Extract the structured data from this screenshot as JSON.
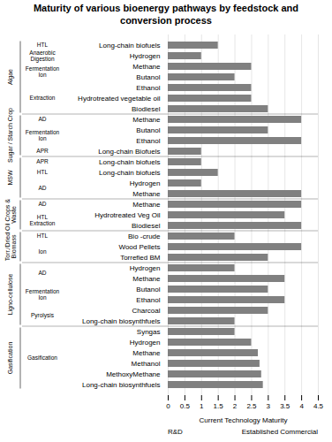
{
  "chart_data": {
    "type": "bar",
    "orientation": "horizontal",
    "title": "Maturity of various bioenergy pathways by feedstock and\nconversion process",
    "xlabel": "Current Technology Maturity",
    "xlim": [
      0,
      4.5
    ],
    "xticks": [
      0,
      0.5,
      1,
      1.5,
      2,
      2.5,
      3,
      3.5,
      4,
      4.5
    ],
    "grid": true,
    "color": "#808080",
    "x_end_labels": [
      "R&D",
      "Established Commercial"
    ],
    "categories": [
      "Long-chain biofuels",
      "Hydrogen",
      "Methane",
      "Butanol",
      "Ethanol",
      "Hydrotreated vegetable oil",
      "Biodiesel",
      "Methane",
      "Butanol",
      "Ethanol",
      "Long-chain Biofuels",
      "Long-chain biofuels",
      "Long-chain biofuels",
      "Hydrogen",
      "Methane",
      "Methane",
      "Hydrotreated Veg Oil",
      "Biodiesel",
      "Bio -crude",
      "Wood Pellets",
      "Torrefied BM",
      "Hydrogen",
      "Methane",
      "Butanol",
      "Ethanol",
      "Charcoal",
      "Long-chain biosynthfuels",
      "Syngas",
      "Hydrogen",
      "Methane",
      "Methanol",
      "MethoxyMethane",
      "Long-chain biosynthfuels"
    ],
    "values": [
      1.5,
      1.0,
      2.5,
      2.0,
      2.5,
      2.5,
      3.0,
      4.0,
      3.0,
      4.0,
      1.0,
      1.0,
      1.5,
      1.0,
      4.0,
      4.0,
      3.5,
      4.0,
      2.0,
      4.0,
      3.0,
      2.0,
      3.5,
      3.0,
      3.5,
      3.0,
      2.0,
      2.0,
      2.5,
      2.7,
      2.75,
      2.8,
      2.85
    ],
    "groups": [
      {
        "label": "Algae",
        "start": 0,
        "end": 6
      },
      {
        "label": "Sugar / Starch Crop",
        "start": 7,
        "end": 10
      },
      {
        "label": "MSW",
        "start": 11,
        "end": 14
      },
      {
        "label": "Oil Crops &\nWaste",
        "start": 15,
        "end": 17
      },
      {
        "label": "Torr./Dried\nBiomass",
        "start": 18,
        "end": 20
      },
      {
        "label": "Ligno-cellulose",
        "start": 21,
        "end": 26
      },
      {
        "label": "Gasification",
        "start": 27,
        "end": 32
      }
    ],
    "subgroups": [
      {
        "label": "HTL",
        "start": 0,
        "end": 0
      },
      {
        "label": "Anaerobic\nDigestion",
        "start": 1,
        "end": 1
      },
      {
        "label": "Fermentation\nIon",
        "start": 2,
        "end": 3
      },
      {
        "label": "Extraction",
        "start": 4,
        "end": 6
      },
      {
        "label": "AD",
        "start": 7,
        "end": 7
      },
      {
        "label": "Fermentation\nIon",
        "start": 8,
        "end": 9
      },
      {
        "label": "APR",
        "start": 10,
        "end": 10
      },
      {
        "label": "APR",
        "start": 11,
        "end": 11
      },
      {
        "label": "HTL",
        "start": 12,
        "end": 12
      },
      {
        "label": "AD",
        "start": 13,
        "end": 14
      },
      {
        "label": "AD",
        "start": 15,
        "end": 15
      },
      {
        "label": "HTL\nExtraction",
        "start": 16,
        "end": 17
      },
      {
        "label": "HTL",
        "start": 18,
        "end": 18
      },
      {
        "label": "Ion",
        "start": 19,
        "end": 20
      },
      {
        "label": "AD",
        "start": 21,
        "end": 22
      },
      {
        "label": "Fermentation\nIon",
        "start": 23,
        "end": 24
      },
      {
        "label": "Pyrolysis",
        "start": 25,
        "end": 26
      },
      {
        "label": "Gasification",
        "start": 27,
        "end": 32
      }
    ]
  }
}
